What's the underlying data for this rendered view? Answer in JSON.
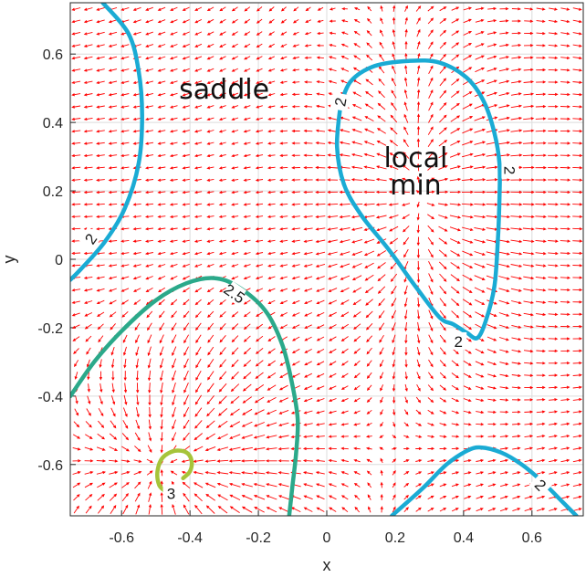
{
  "chart_data": {
    "type": "contour",
    "xlabel": "x",
    "ylabel": "y",
    "xlim": [
      -0.75,
      0.75
    ],
    "ylim": [
      -0.75,
      0.75
    ],
    "xticks": [
      -0.6,
      -0.4,
      -0.2,
      0,
      0.2,
      0.4,
      0.6
    ],
    "xtick_labels": [
      "-0.6",
      "-0.4",
      "-0.2",
      "0",
      "0.2",
      "0.4",
      "0.6"
    ],
    "yticks": [
      -0.6,
      -0.4,
      -0.2,
      0,
      0.2,
      0.4,
      0.6
    ],
    "ytick_labels": [
      "-0.6",
      "-0.4",
      "-0.2",
      "0",
      "0.2",
      "0.4",
      "0.6"
    ],
    "grid": true,
    "vector_field": {
      "color": "#ff0000",
      "description": "gradient arrows"
    },
    "contours": [
      {
        "level": "2",
        "color": "#1aabd4",
        "points": [
          [
            -0.655,
            0.75
          ],
          [
            -0.58,
            0.66
          ],
          [
            -0.55,
            0.55
          ],
          [
            -0.54,
            0.42
          ],
          [
            -0.55,
            0.28
          ],
          [
            -0.59,
            0.15
          ],
          [
            -0.65,
            0.05
          ],
          [
            -0.72,
            -0.03
          ],
          [
            -0.75,
            -0.06
          ]
        ]
      },
      {
        "level": "2",
        "color": "#1aabd4",
        "points": [
          [
            0.04,
            0.45
          ],
          [
            0.07,
            0.52
          ],
          [
            0.14,
            0.565
          ],
          [
            0.24,
            0.58
          ],
          [
            0.33,
            0.575
          ],
          [
            0.41,
            0.53
          ],
          [
            0.46,
            0.46
          ],
          [
            0.49,
            0.37
          ],
          [
            0.505,
            0.28
          ],
          [
            0.505,
            0.18
          ],
          [
            0.5,
            0.05
          ],
          [
            0.49,
            -0.08
          ],
          [
            0.465,
            -0.18
          ],
          [
            0.44,
            -0.23
          ],
          [
            0.41,
            -0.215
          ],
          [
            0.37,
            -0.19
          ],
          [
            0.33,
            -0.17
          ],
          [
            0.26,
            -0.08
          ],
          [
            0.18,
            0.03
          ],
          [
            0.1,
            0.13
          ],
          [
            0.05,
            0.22
          ],
          [
            0.03,
            0.33
          ],
          [
            0.04,
            0.45
          ]
        ]
      },
      {
        "level": "2",
        "color": "#1aabd4",
        "points": [
          [
            0.19,
            -0.75
          ],
          [
            0.28,
            -0.67
          ],
          [
            0.35,
            -0.6
          ],
          [
            0.41,
            -0.56
          ],
          [
            0.45,
            -0.55
          ],
          [
            0.51,
            -0.565
          ],
          [
            0.57,
            -0.6
          ],
          [
            0.63,
            -0.65
          ],
          [
            0.69,
            -0.71
          ],
          [
            0.73,
            -0.75
          ]
        ]
      },
      {
        "level": "2.5",
        "color": "#2ba98a",
        "points": [
          [
            -0.75,
            -0.4
          ],
          [
            -0.68,
            -0.3
          ],
          [
            -0.6,
            -0.21
          ],
          [
            -0.5,
            -0.12
          ],
          [
            -0.41,
            -0.07
          ],
          [
            -0.33,
            -0.055
          ],
          [
            -0.26,
            -0.08
          ],
          [
            -0.18,
            -0.15
          ],
          [
            -0.13,
            -0.25
          ],
          [
            -0.1,
            -0.37
          ],
          [
            -0.085,
            -0.47
          ],
          [
            -0.09,
            -0.57
          ],
          [
            -0.1,
            -0.66
          ],
          [
            -0.11,
            -0.75
          ]
        ]
      },
      {
        "level": "3",
        "color": "#a6c43a",
        "points": [
          [
            -0.42,
            -0.64
          ],
          [
            -0.4,
            -0.62
          ],
          [
            -0.395,
            -0.59
          ],
          [
            -0.41,
            -0.565
          ],
          [
            -0.445,
            -0.56
          ],
          [
            -0.48,
            -0.58
          ],
          [
            -0.495,
            -0.62
          ],
          [
            -0.49,
            -0.66
          ],
          [
            -0.47,
            -0.68
          ]
        ]
      }
    ],
    "contour_labels": [
      {
        "text": "2",
        "x": -0.69,
        "y": 0.06,
        "angle": -55
      },
      {
        "text": "2",
        "x": 0.04,
        "y": 0.46,
        "angle": -80
      },
      {
        "text": "2",
        "x": 0.535,
        "y": 0.26,
        "angle": 90
      },
      {
        "text": "2",
        "x": 0.385,
        "y": -0.24,
        "angle": 0
      },
      {
        "text": "2",
        "x": 0.625,
        "y": -0.66,
        "angle": 45
      },
      {
        "text": "2.5",
        "x": -0.27,
        "y": -0.1,
        "angle": 35
      },
      {
        "text": "3",
        "x": -0.455,
        "y": -0.685,
        "angle": 0
      }
    ],
    "annotations": [
      {
        "text": "saddle",
        "x": -0.3,
        "y": 0.47
      },
      {
        "text": "local",
        "x": 0.26,
        "y": 0.27
      },
      {
        "text": "min",
        "x": 0.26,
        "y": 0.19
      }
    ]
  }
}
